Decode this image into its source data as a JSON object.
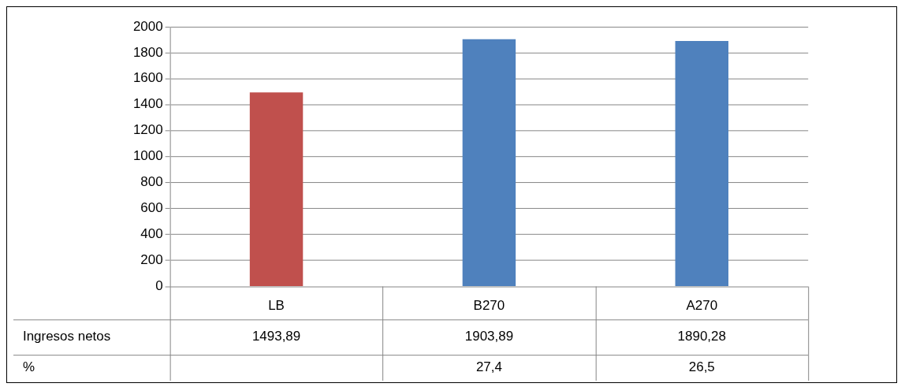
{
  "chart_data": {
    "type": "bar",
    "categories": [
      "LB",
      "B270",
      "A270"
    ],
    "series": [
      {
        "name": "Ingresos netos",
        "values": [
          1493.89,
          1903.89,
          1890.28
        ],
        "colors": [
          "#c0504d",
          "#4f81bd",
          "#4f81bd"
        ],
        "value_labels": [
          "1493,89",
          "1903,89",
          "1890,28"
        ]
      }
    ],
    "ylim": [
      0,
      2000
    ],
    "yticks": [
      0,
      200,
      400,
      600,
      800,
      1000,
      1200,
      1400,
      1600,
      1800,
      2000
    ],
    "grid": "y",
    "annotations": [
      "%",
      "27,4",
      "26,5"
    ]
  }
}
